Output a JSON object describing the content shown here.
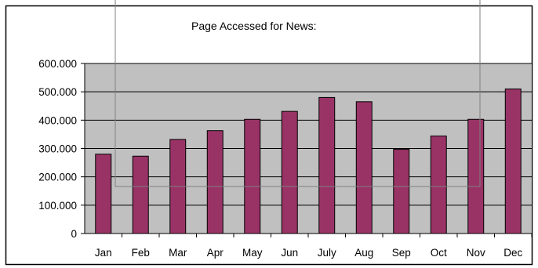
{
  "chart_data": {
    "type": "bar",
    "title": "Page Accessed for News:",
    "xlabel": "",
    "ylabel": "",
    "categories": [
      "Jan",
      "Feb",
      "Mar",
      "Apr",
      "May",
      "Jun",
      "July",
      "Aug",
      "Sep",
      "Oct",
      "Nov",
      "Dec"
    ],
    "values": [
      280000,
      273000,
      332000,
      363000,
      403000,
      431000,
      480000,
      465000,
      297000,
      344000,
      403000,
      510000
    ],
    "ylim": [
      0,
      600000
    ],
    "yticks": [
      0,
      100000,
      200000,
      300000,
      400000,
      500000,
      600000
    ],
    "ytick_labels": [
      "0",
      "100.000",
      "200.000",
      "300.000",
      "400.000",
      "500.000",
      "600.000"
    ],
    "grid": true,
    "legend": "none",
    "colors": {
      "bar_fill": "#993366",
      "plot_background": "#c0c0c0",
      "grid": "#000000",
      "frame": "#000000",
      "overlay_box": "#808080"
    }
  }
}
